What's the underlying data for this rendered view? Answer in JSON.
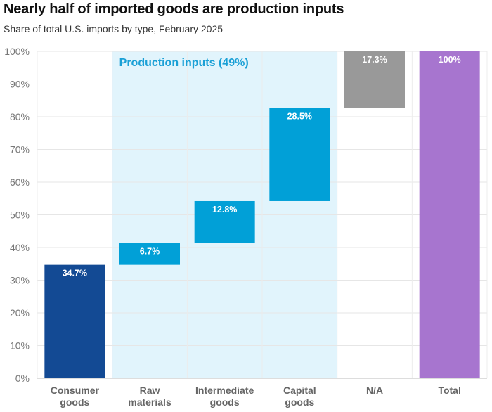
{
  "title": "Nearly half of imported goods are production inputs",
  "subtitle": "Share of total U.S. imports by type, February 2025",
  "chart_data": {
    "type": "bar",
    "subtype": "waterfall",
    "categories": [
      [
        "Consumer",
        "goods"
      ],
      [
        "Raw",
        "materials"
      ],
      [
        "Intermediate",
        "goods"
      ],
      [
        "Capital",
        "goods"
      ],
      [
        "N/A"
      ],
      [
        "Total"
      ]
    ],
    "bars": [
      {
        "start": 0,
        "end": 34.7,
        "label": "34.7%",
        "color": "#134a94"
      },
      {
        "start": 34.7,
        "end": 41.4,
        "label": "6.7%",
        "color": "#01a0d7"
      },
      {
        "start": 41.4,
        "end": 54.2,
        "label": "12.8%",
        "color": "#01a0d7"
      },
      {
        "start": 54.2,
        "end": 82.7,
        "label": "28.5%",
        "color": "#01a0d7"
      },
      {
        "start": 82.7,
        "end": 100,
        "label": "17.3%",
        "color": "#999999"
      },
      {
        "start": 0,
        "end": 100,
        "label": "100%",
        "color": "#a775cf"
      }
    ],
    "highlight": {
      "label": "Production inputs (49%)",
      "from_category": 1,
      "to_category": 3,
      "color": "#e1f4fc"
    },
    "yticks": [
      "0%",
      "10%",
      "20%",
      "30%",
      "40%",
      "50%",
      "60%",
      "70%",
      "80%",
      "90%",
      "100%"
    ],
    "ylim": [
      0,
      100
    ],
    "grid": true
  }
}
